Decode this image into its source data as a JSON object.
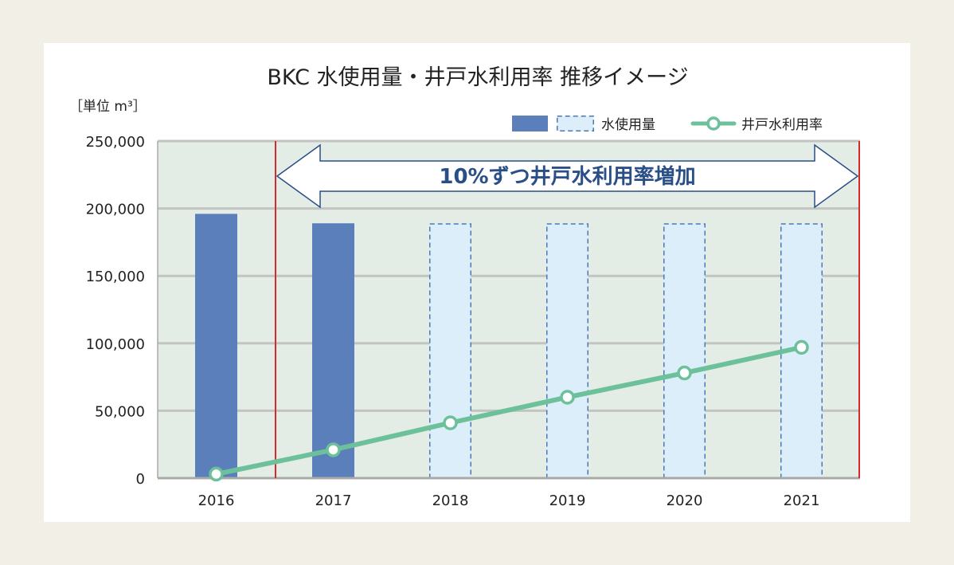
{
  "chart_data": {
    "type": "bar",
    "title": "BKC 水使用量・井戸水利用率 推移イメージ",
    "unit_label": "［単位 m³］",
    "categories": [
      "2016",
      "2017",
      "2018",
      "2019",
      "2020",
      "2021"
    ],
    "ylim": [
      0,
      250000
    ],
    "yticks": [
      0,
      50000,
      100000,
      150000,
      200000,
      250000
    ],
    "ytick_labels": [
      "0",
      "50,000",
      "100,000",
      "150,000",
      "200,000",
      "250,000"
    ],
    "grid": true,
    "legend_position": "top-right",
    "series": [
      {
        "name": "水使用量",
        "type": "bar",
        "values": [
          196000,
          189000,
          189000,
          189000,
          189000,
          189000
        ],
        "styles": [
          "actual",
          "actual",
          "planned",
          "planned",
          "planned",
          "planned"
        ]
      },
      {
        "name": "井戸水利用率",
        "type": "line",
        "values": [
          3000,
          21000,
          41000,
          60000,
          78000,
          97000
        ]
      }
    ],
    "annotation": {
      "text": "10%ずつ井戸水利用率増加",
      "from": "2017",
      "to": "2021"
    }
  },
  "colors": {
    "actual_bar": "#5b7fba",
    "planned_bar_fill": "#dceef9",
    "planned_bar_stroke": "#4a78b8",
    "line": "#6cc19a",
    "plot_bg": "#e4ece6",
    "gridline": "#c2c4c2",
    "marker_line": "#d42a2a",
    "annotation_text": "#2a4e86"
  }
}
